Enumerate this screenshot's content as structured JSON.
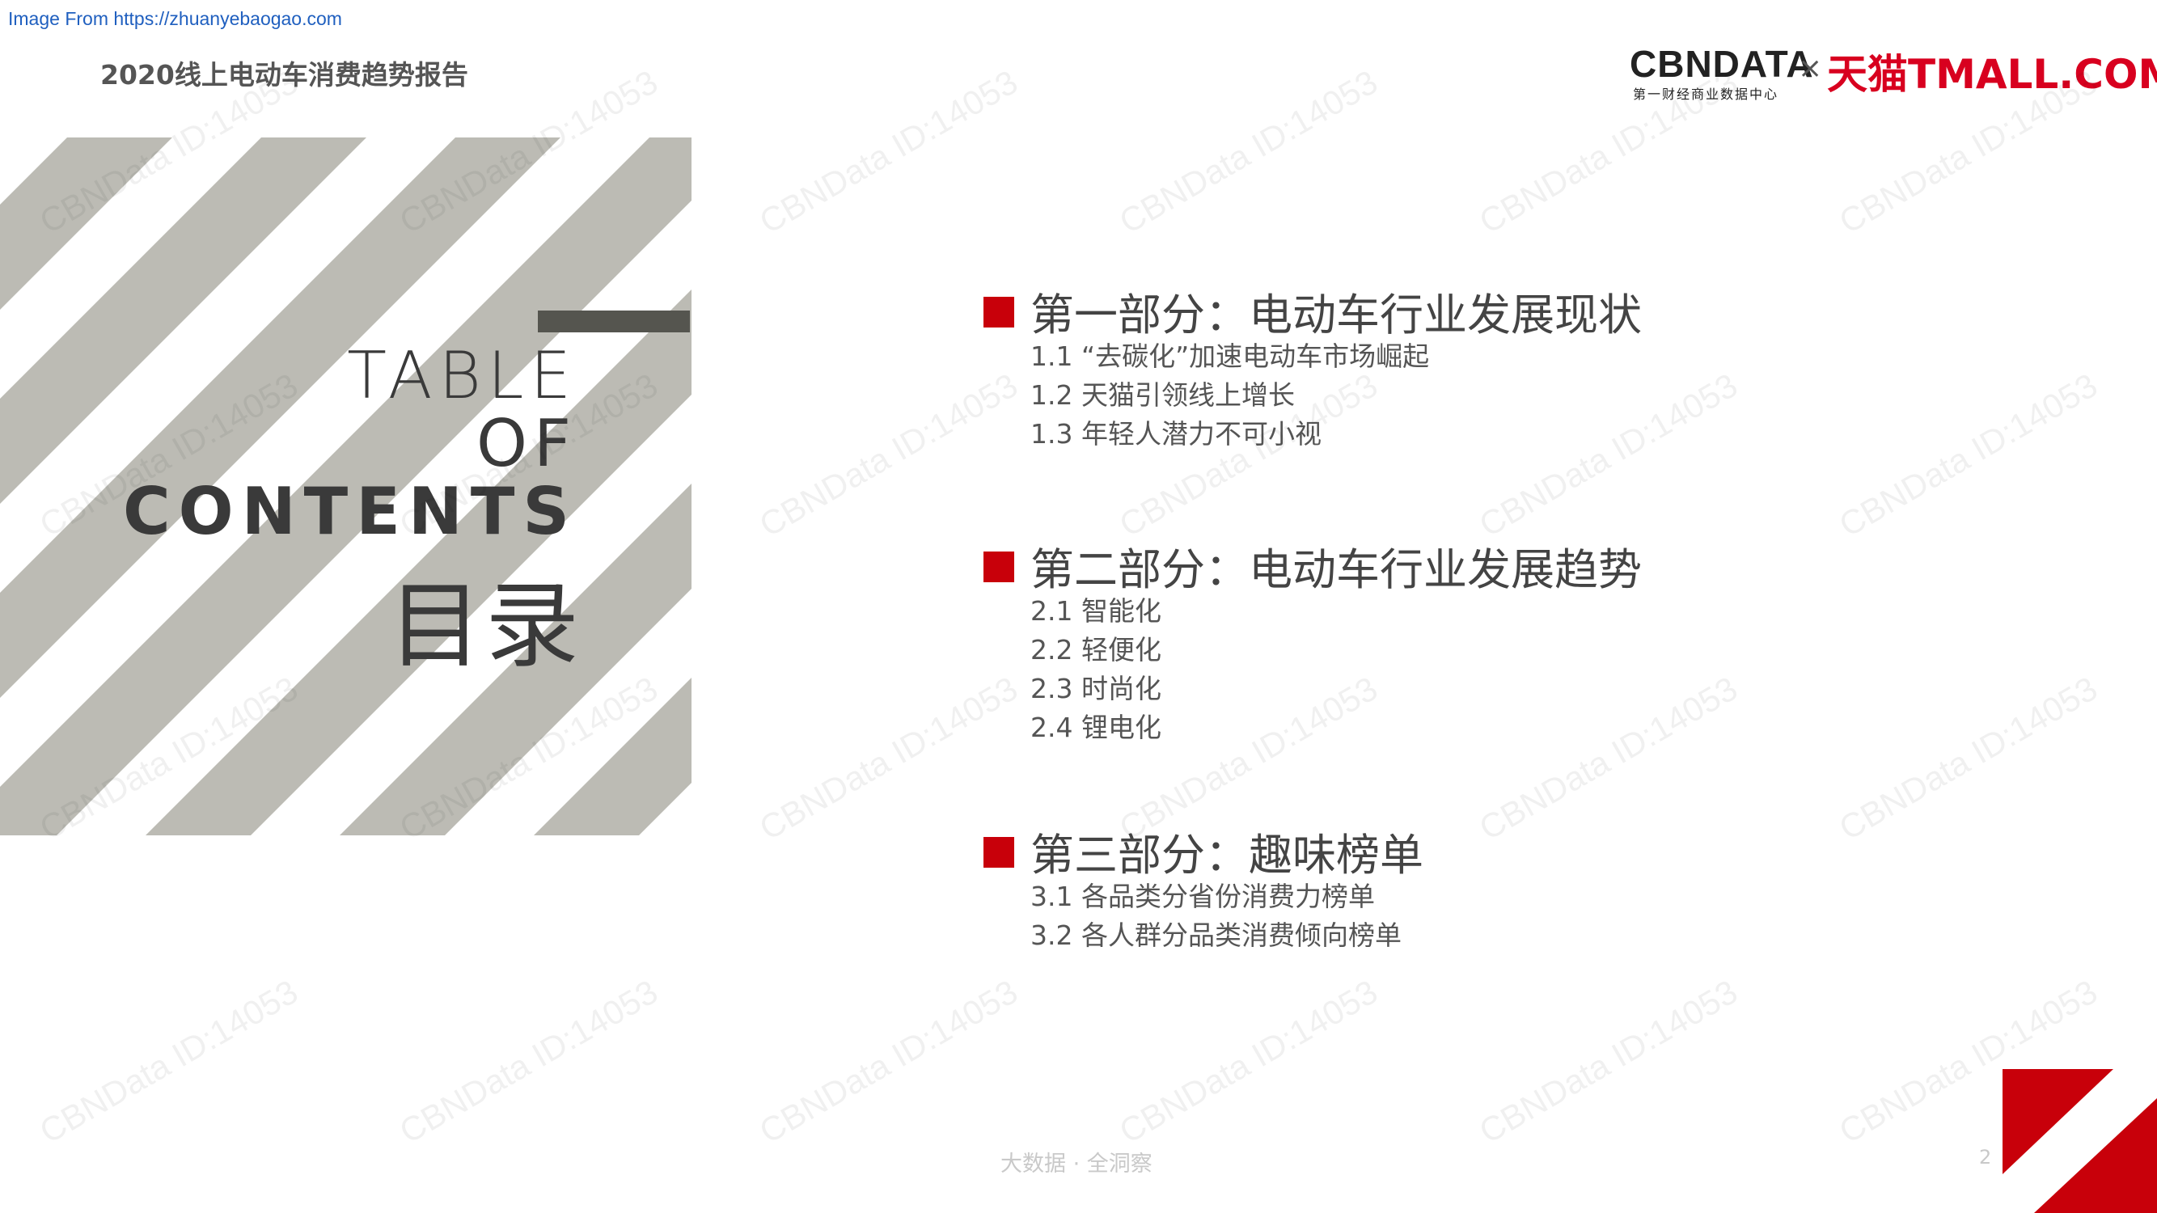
{
  "source_note": "Image From https://zhuanyebaogao.com",
  "report_title": "2020线上电动车消费趋势报告",
  "header_logos": {
    "cbndata_word": "CBNDATA",
    "cbndata_sub": "第一财经商业数据中心",
    "times": "×",
    "tmall_word": "天猫TMALL.COM"
  },
  "toc": {
    "line1": "TABLE",
    "line2": "OF",
    "line3": "CONTENTS",
    "cn": "目录"
  },
  "sections": [
    {
      "title": "第一部分：电动车行业发展现状",
      "items": [
        "1.1 “去碳化”加速电动车市场崛起",
        "1.2 天猫引领线上增长",
        "1.3 年轻人潜力不可小视"
      ]
    },
    {
      "title": "第二部分：电动车行业发展趋势",
      "items": [
        "2.1 智能化",
        "2.2 轻便化",
        "2.3 时尚化",
        "2.4 锂电化"
      ]
    },
    {
      "title": "第三部分：趣味榜单",
      "items": [
        "3.1 各品类分省份消费力榜单",
        "3.2 各人群分品类消费倾向榜单"
      ]
    }
  ],
  "watermark_text": "CBNData ID:14053",
  "footer": {
    "slogan": "大数据 · 全洞察",
    "page_number": "2"
  },
  "colors": {
    "accent_red": "#c8000a",
    "stripe_gray": "#bcbbb4",
    "tmall_red": "#d8001f"
  }
}
